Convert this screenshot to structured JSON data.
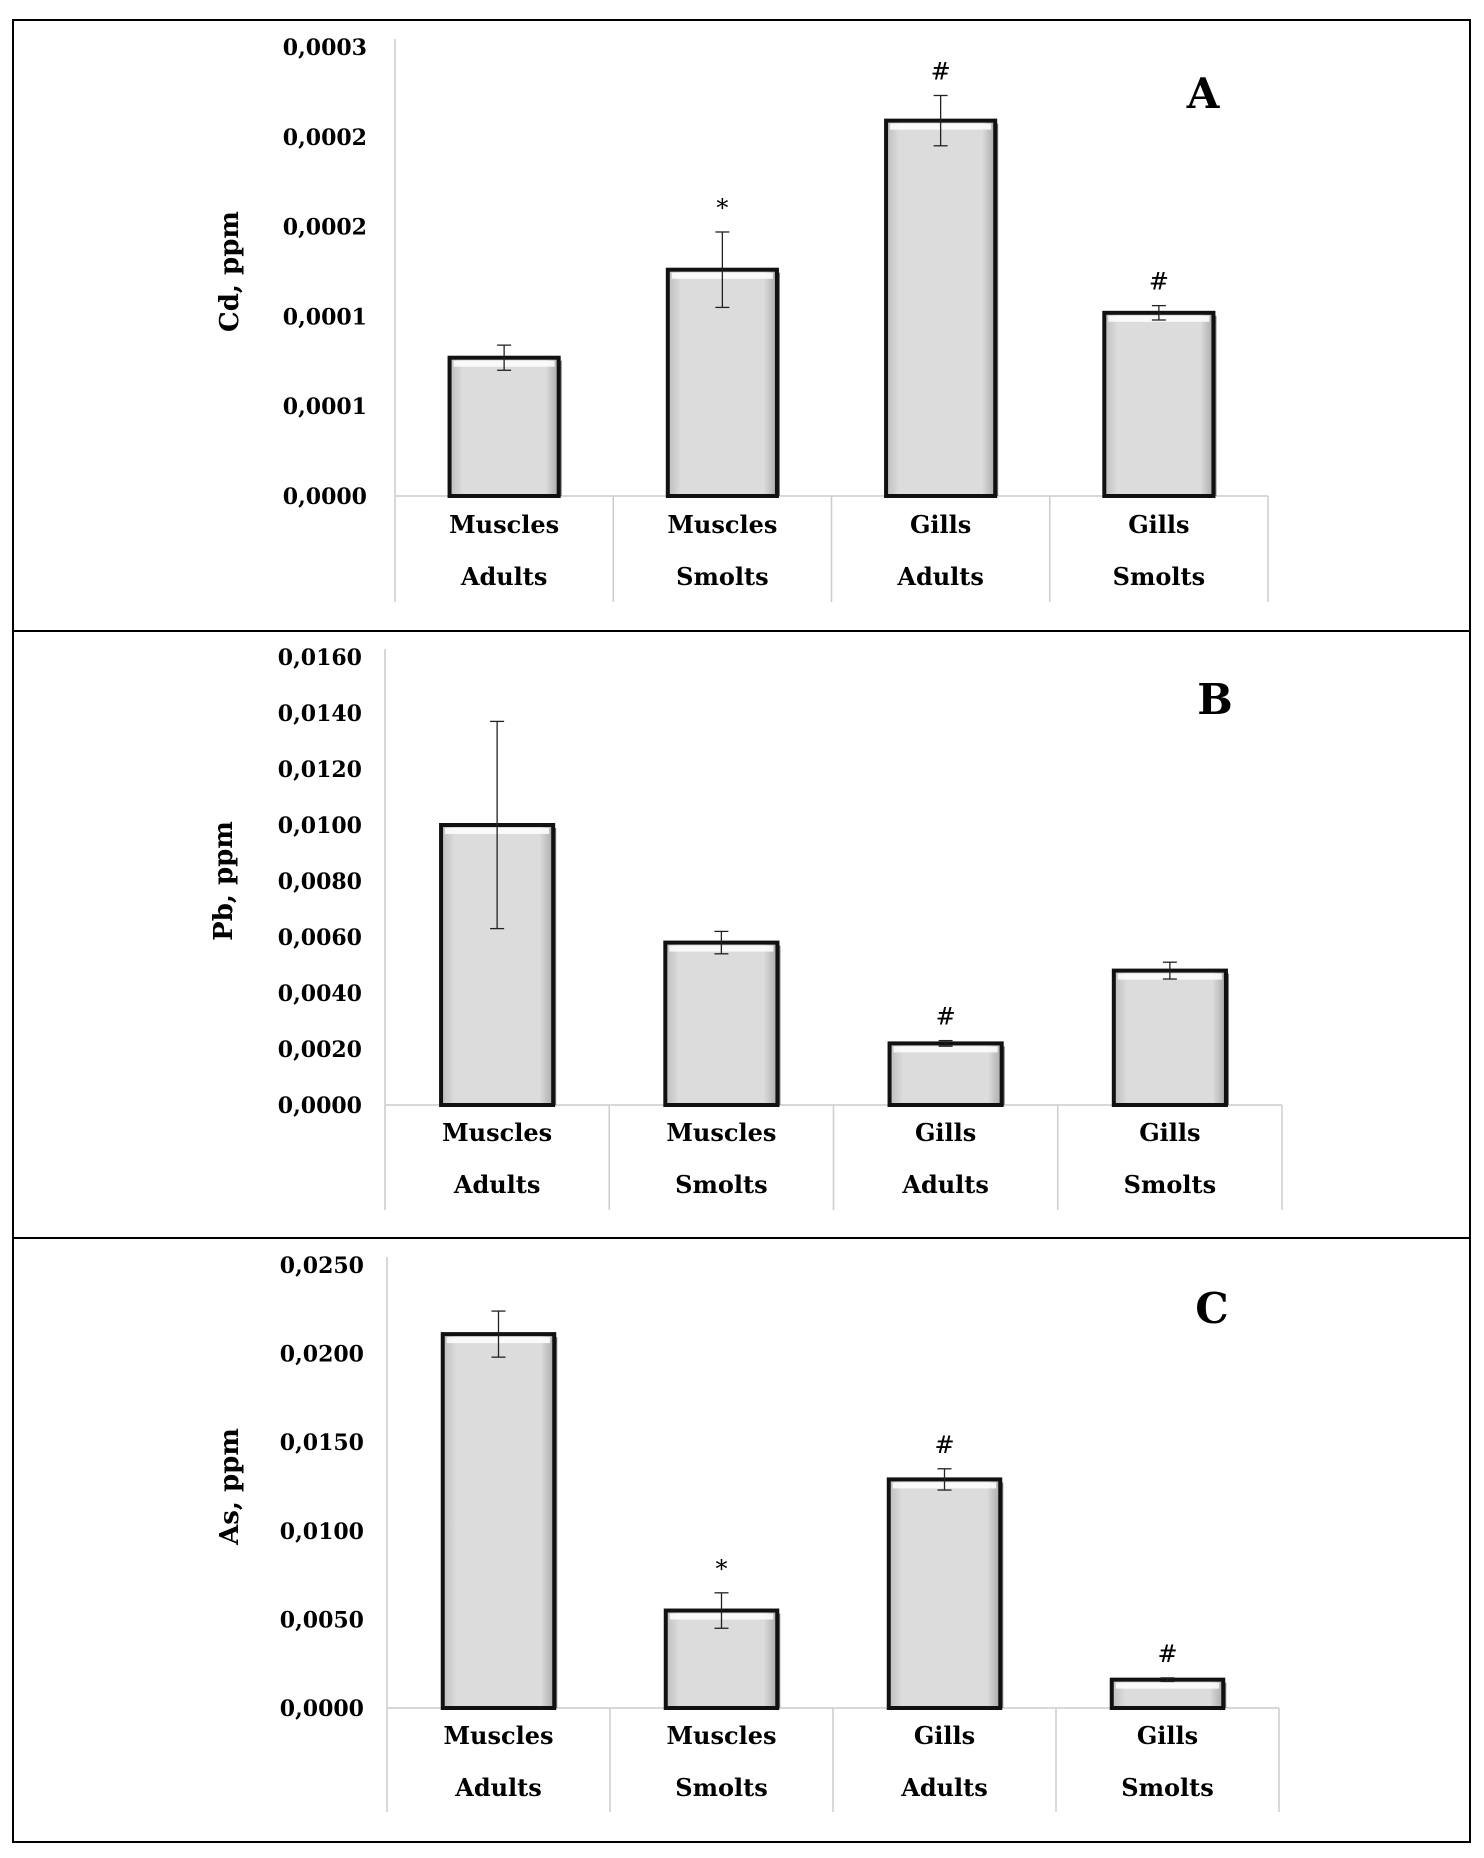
{
  "chart_data": [
    {
      "type": "bar",
      "panel_label": "A",
      "ylabel": "Cd, ppm",
      "ylim": [
        0,
        0.00025
      ],
      "yticks": [
        0,
        5e-05,
        0.0001,
        0.00015,
        0.0002,
        0.00025
      ],
      "ytick_labels": [
        "0,0000",
        "0,0001",
        "0,0001",
        "0,0002",
        "0,0002",
        "0,0003"
      ],
      "categories": [
        [
          "Muscles",
          "Adults"
        ],
        [
          "Muscles",
          "Smolts"
        ],
        [
          "Gills",
          "Adults"
        ],
        [
          "Gills",
          "Smolts"
        ]
      ],
      "values": [
        7.7e-05,
        0.000126,
        0.000209,
        0.000102
      ],
      "errors": [
        7e-06,
        2.1e-05,
        1.4e-05,
        4e-06
      ],
      "markers": [
        "",
        "*",
        "#",
        "#"
      ]
    },
    {
      "type": "bar",
      "panel_label": "B",
      "ylabel": "Pb, ppm",
      "ylim": [
        0,
        0.016
      ],
      "yticks": [
        0,
        0.002,
        0.004,
        0.006,
        0.008,
        0.01,
        0.012,
        0.014,
        0.016
      ],
      "ytick_labels": [
        "0,0000",
        "0,0020",
        "0,0040",
        "0,0060",
        "0,0080",
        "0,0100",
        "0,0120",
        "0,0140",
        "0,0160"
      ],
      "categories": [
        [
          "Muscles",
          "Adults"
        ],
        [
          "Muscles",
          "Smolts"
        ],
        [
          "Gills",
          "Adults"
        ],
        [
          "Gills",
          "Smolts"
        ]
      ],
      "values": [
        0.01,
        0.0058,
        0.0022,
        0.0048
      ],
      "errors": [
        0.0037,
        0.0004,
        0.0001,
        0.0003
      ],
      "markers": [
        "",
        "",
        "#",
        ""
      ]
    },
    {
      "type": "bar",
      "panel_label": "C",
      "ylabel": "As, ppm",
      "ylim": [
        0,
        0.025
      ],
      "yticks": [
        0,
        0.005,
        0.01,
        0.015,
        0.02,
        0.025
      ],
      "ytick_labels": [
        "0,0000",
        "0,0050",
        "0,0100",
        "0,0150",
        "0,0200",
        "0,0250"
      ],
      "categories": [
        [
          "Muscles",
          "Adults"
        ],
        [
          "Muscles",
          "Smolts"
        ],
        [
          "Gills",
          "Adults"
        ],
        [
          "Gills",
          "Smolts"
        ]
      ],
      "values": [
        0.0211,
        0.0055,
        0.0129,
        0.0016
      ],
      "errors": [
        0.0013,
        0.001,
        0.0006,
        0.0001
      ],
      "markers": [
        "",
        "*",
        "#",
        "#"
      ]
    }
  ],
  "colors": {
    "bar_fill": "#dcdcdc",
    "bar_edge": "#111111",
    "bar_highlight": "#ffffff",
    "frame": "#000000",
    "axis_grid": "#cccccc"
  }
}
